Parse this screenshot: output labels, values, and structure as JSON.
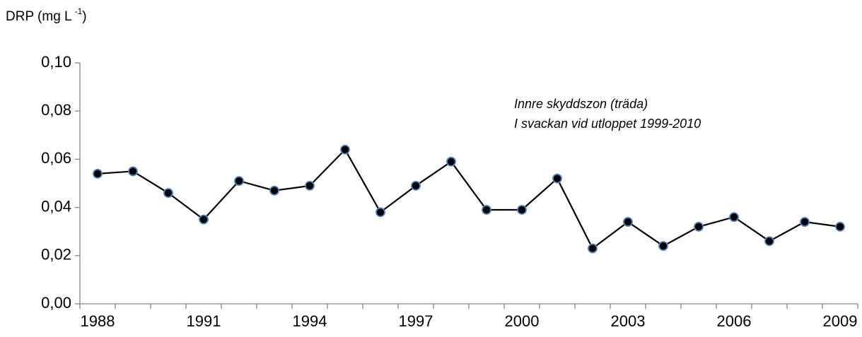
{
  "chart_data": {
    "type": "line",
    "ylabel": {
      "text": "DRP (mg L",
      "superscript": "-1",
      "suffix": ")"
    },
    "annotations": [
      "Innre skyddszon (träda)",
      "I svackan vid utloppet 1999-2010"
    ],
    "categories": [
      "1988",
      null,
      null,
      "1991",
      null,
      null,
      "1994",
      null,
      null,
      "1997",
      null,
      null,
      "2000",
      null,
      null,
      "2003",
      null,
      null,
      "2006",
      null,
      null,
      "2009"
    ],
    "values": [
      0.054,
      0.055,
      0.046,
      0.035,
      0.051,
      0.047,
      0.049,
      0.064,
      0.038,
      0.049,
      0.059,
      0.039,
      0.039,
      0.052,
      0.023,
      0.034,
      0.024,
      0.032,
      0.036,
      0.026,
      0.034,
      0.032
    ],
    "color": "#000000",
    "marker_edge_color": "#4f81bd",
    "ylim": [
      0,
      0.1
    ],
    "yticks": [
      {
        "value": 0,
        "label": "0,00"
      },
      {
        "value": 0.02,
        "label": "0,02"
      },
      {
        "value": 0.04,
        "label": "0,04"
      },
      {
        "value": 0.06,
        "label": "0,06"
      },
      {
        "value": 0.08,
        "label": "0,08"
      },
      {
        "value": 0.1,
        "label": "0,10"
      }
    ],
    "grid": false
  }
}
